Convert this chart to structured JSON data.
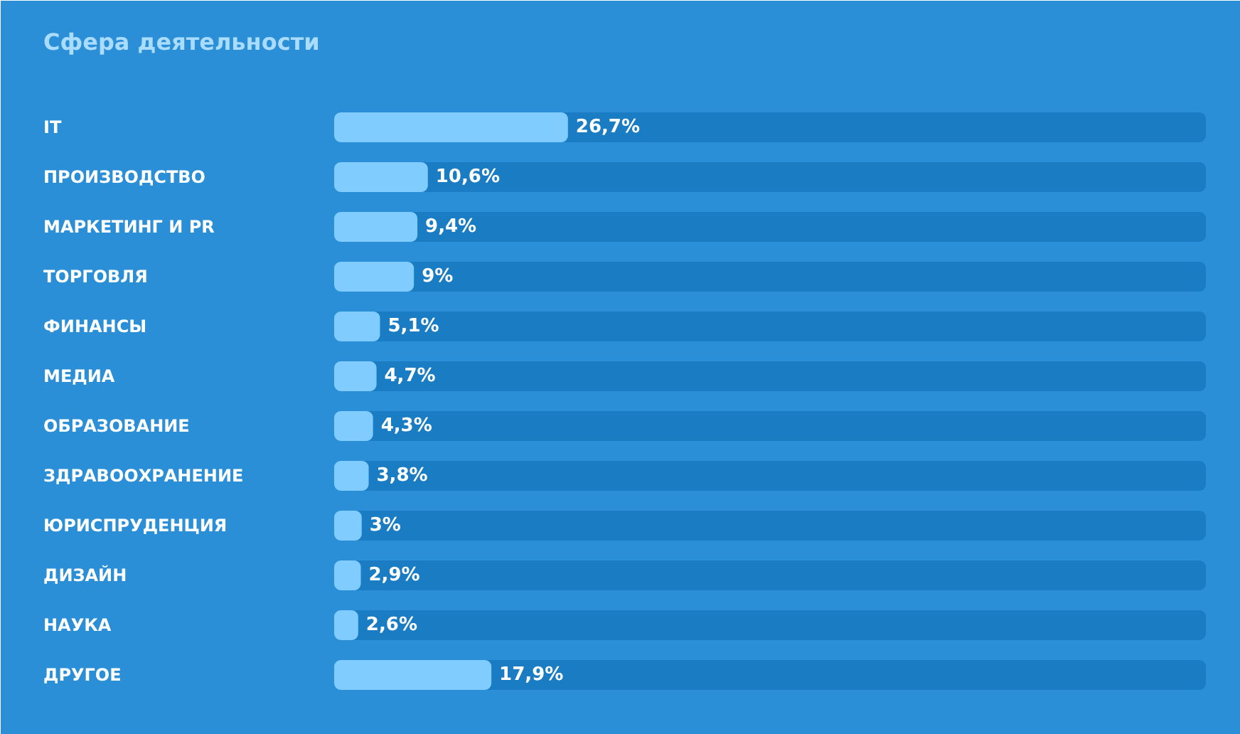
{
  "chart_data": {
    "type": "bar",
    "orientation": "horizontal",
    "title": "Сфера деятельности",
    "categories": [
      "IT",
      "ПРОИЗВОДСТВО",
      "МАРКЕТИНГ И PR",
      "ТОРГОВЛЯ",
      "ФИНАНСЫ",
      "МЕДИА",
      "ОБРАЗОВАНИЕ",
      "ЗДРАВООХРАНЕНИЕ",
      "ЮРИСПРУДЕНЦИЯ",
      "ДИЗАЙН",
      "НАУКА",
      "ДРУГОЕ"
    ],
    "series": [
      {
        "color": "#80ccff",
        "values": [
          26.7,
          10.6,
          9.4,
          9,
          5.1,
          4.7,
          4.3,
          3.8,
          3,
          2.9,
          2.6,
          17.9
        ],
        "value_labels": [
          "26,7%",
          "10,6%",
          "9,4%",
          "9%",
          "5,1%",
          "4,7%",
          "4,3%",
          "3,8%",
          "3%",
          "2,9%",
          "2,6%",
          "17,9%"
        ]
      }
    ],
    "xlim": [
      0,
      100
    ],
    "grid": false,
    "bands": [
      {
        "axis": "x",
        "from": 0,
        "to": 100,
        "color": "#1a7dc4"
      },
      {
        "axis": "x",
        "from": 0,
        "to": 100,
        "color": "#1a7dc4"
      },
      {
        "axis": "x",
        "from": 0,
        "to": 100,
        "color": "#1a7dc4"
      },
      {
        "axis": "x",
        "from": 0,
        "to": 100,
        "color": "#1a7dc4"
      },
      {
        "axis": "x",
        "from": 0,
        "to": 100,
        "color": "#1a7dc4"
      },
      {
        "axis": "x",
        "from": 0,
        "to": 100,
        "color": "#1a7dc4"
      },
      {
        "axis": "x",
        "from": 0,
        "to": 100,
        "color": "#1a7dc4"
      },
      {
        "axis": "x",
        "from": 0,
        "to": 100,
        "color": "#1a7dc4"
      },
      {
        "axis": "x",
        "from": 0,
        "to": 100,
        "color": "#1a7dc4"
      },
      {
        "axis": "x",
        "from": 0,
        "to": 100,
        "color": "#1a7dc4"
      },
      {
        "axis": "x",
        "from": 0,
        "to": 100,
        "color": "#1a7dc4"
      },
      {
        "axis": "x",
        "from": 0,
        "to": 100,
        "color": "#1a7dc4"
      }
    ]
  }
}
